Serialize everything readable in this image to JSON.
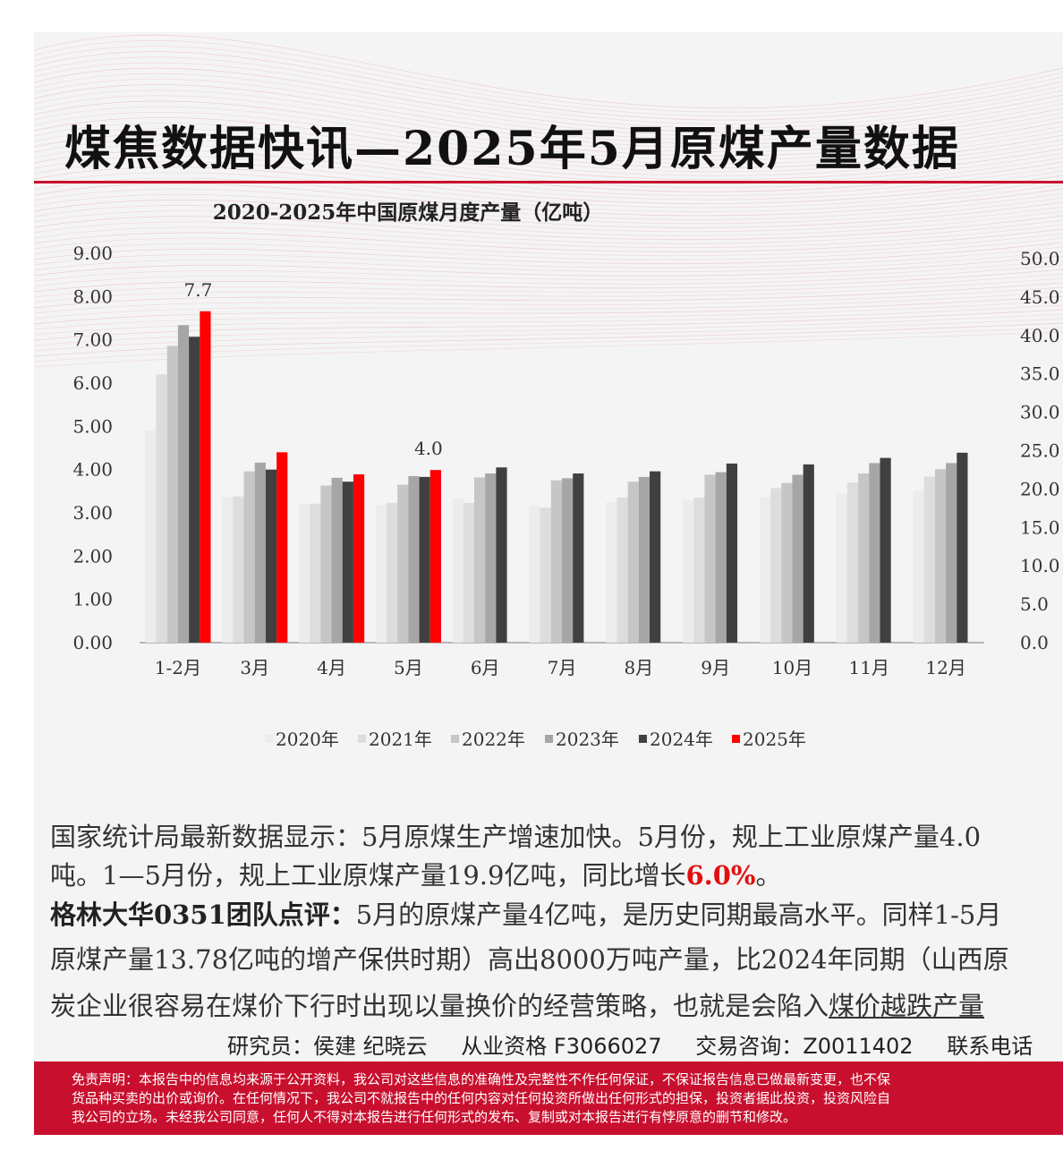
{
  "title": "煤焦数据快讯—2025年5月原煤产量数据",
  "chart_data": {
    "type": "bar",
    "title": "2020-2025年中国原煤月度产量（亿吨）",
    "categories": [
      "1-2月",
      "3月",
      "4月",
      "5月",
      "6月",
      "7月",
      "8月",
      "9月",
      "10月",
      "11月",
      "12月"
    ],
    "ylim": [
      0,
      9
    ],
    "yticks": [
      "0.00",
      "1.00",
      "2.00",
      "3.00",
      "4.00",
      "5.00",
      "6.00",
      "7.00",
      "8.00",
      "9.00"
    ],
    "y2ticks": [
      "0.0",
      "5.0",
      "10.0",
      "15.0",
      "20.0",
      "25.0",
      "30.0",
      "35.0",
      "40.0",
      "45.0",
      "50.0"
    ],
    "y2lim": [
      0,
      50
    ],
    "legend_position": "bottom",
    "series": [
      {
        "name": "2020年",
        "color": "#ececec",
        "values": [
          4.9,
          3.37,
          3.21,
          3.18,
          3.33,
          3.16,
          3.24,
          3.3,
          3.35,
          3.45,
          3.5
        ]
      },
      {
        "name": "2021年",
        "color": "#dddddd",
        "values": [
          6.2,
          3.38,
          3.21,
          3.23,
          3.23,
          3.12,
          3.35,
          3.35,
          3.57,
          3.7,
          3.84
        ]
      },
      {
        "name": "2022年",
        "color": "#c6c6c6",
        "values": [
          6.86,
          3.96,
          3.63,
          3.65,
          3.82,
          3.75,
          3.72,
          3.88,
          3.69,
          3.91,
          4.01
        ]
      },
      {
        "name": "2023年",
        "color": "#a6a6a6",
        "values": [
          7.34,
          4.16,
          3.81,
          3.85,
          3.91,
          3.8,
          3.83,
          3.94,
          3.88,
          4.15,
          4.15
        ]
      },
      {
        "name": "2024年",
        "color": "#404040",
        "values": [
          7.07,
          4.0,
          3.72,
          3.83,
          4.05,
          3.91,
          3.96,
          4.14,
          4.12,
          4.27,
          4.39
        ]
      },
      {
        "name": "2025年",
        "color": "#ff0000",
        "values": [
          7.66,
          4.4,
          3.89,
          3.99,
          null,
          null,
          null,
          null,
          null,
          null,
          null
        ]
      }
    ],
    "data_labels": [
      {
        "category": "1-2月",
        "series": "2025年",
        "text": "7.7"
      },
      {
        "category": "5月",
        "series": "2025年",
        "text": "4.0"
      }
    ]
  },
  "para1_line1": "国家统计局最新数据显示：5月原煤生产增速加快。5月份，规上工业原煤产量4.0",
  "para1_line2_a": "吨。1—5月份，规上工业原煤产量19.9亿吨，同比增长",
  "para1_line2_hl": "6.0%",
  "para1_line2_b": "。",
  "para2_lead": "格林大华0351团队点评：",
  "para2_line1": "5月的原煤产量4亿吨，是历史同期最高水平。同样1-5月",
  "para2_line2": "原煤产量13.78亿吨的增产保供时期）高出8000万吨产量，比2024年同期（山西原",
  "para2_line3_a": "炭企业很容易在煤价下行时出现以量换价的经营策略，也就是会陷入",
  "para2_line3_u": "煤价越跌产量",
  "researcher_label": "研究员：侯建 纪晓云",
  "qualification": "从业资格 F3066027",
  "consult": "交易咨询：Z0011402",
  "contact": "联系电话",
  "disclaimer_1": "免责声明：本报告中的信息均来源于公开资料，我公司对这些信息的准确性及完整性不作任何保证，不保证报告信息已做最新变更，也不保",
  "disclaimer_2": "货品种买卖的出价或询价。在任何情况下，我公司不就报告中的任何内容对任何投资所做出任何形式的担保，投资者据此投资，投资风险自",
  "disclaimer_3": "我公司的立场。未经我公司同意，任何人不得对本报告进行任何形式的发布、复制或对本报告进行有悖原意的删节和修改。"
}
